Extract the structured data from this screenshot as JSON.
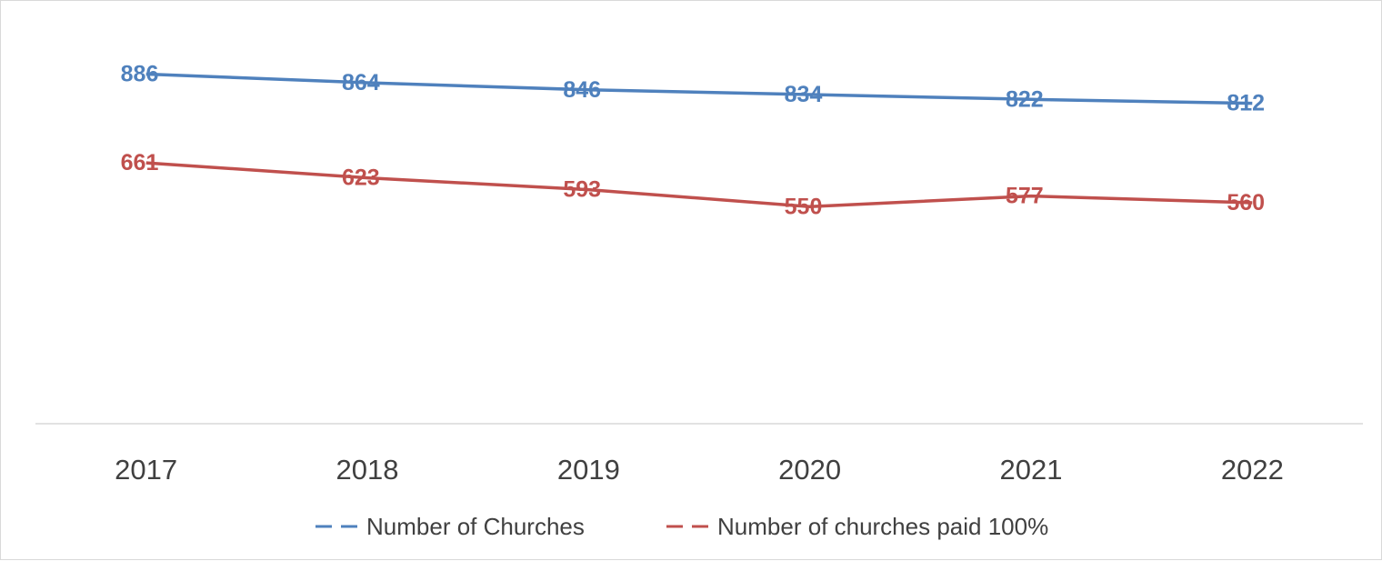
{
  "chart_data": {
    "type": "line",
    "title": "",
    "xlabel": "",
    "ylabel": "",
    "categories": [
      "2017",
      "2018",
      "2019",
      "2020",
      "2021",
      "2022"
    ],
    "ylim": [
      0,
      1000
    ],
    "grid": false,
    "legend_position": "bottom",
    "series": [
      {
        "name": "Number of Churches",
        "values": [
          886,
          864,
          846,
          834,
          822,
          812
        ],
        "color": "#4f81bd"
      },
      {
        "name": "Number of churches paid 100%",
        "values": [
          661,
          623,
          593,
          550,
          577,
          560
        ],
        "color": "#c0504d"
      }
    ],
    "axis_color": "#d9d9d9",
    "text_color": "#404040"
  }
}
